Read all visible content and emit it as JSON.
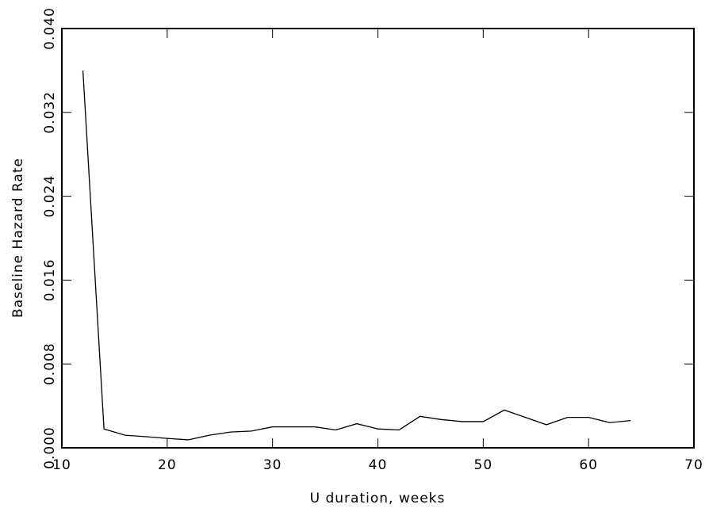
{
  "chart_data": {
    "type": "line",
    "xlabel": "U duration, weeks",
    "ylabel": "Baseline Hazard Rate",
    "x": [
      12,
      14,
      16,
      18,
      20,
      22,
      24,
      26,
      28,
      30,
      32,
      34,
      36,
      38,
      40,
      42,
      44,
      46,
      48,
      50,
      52,
      54,
      56,
      58,
      60,
      62,
      64
    ],
    "values": [
      0.036,
      0.0018,
      0.0012,
      0.00106,
      0.0009,
      0.00076,
      0.0012,
      0.0015,
      0.0016,
      0.002,
      0.002,
      0.002,
      0.0017,
      0.0023,
      0.0018,
      0.0017,
      0.003,
      0.0027,
      0.0025,
      0.0025,
      0.0036,
      0.0029,
      0.0022,
      0.0029,
      0.0029,
      0.0024,
      0.0026
    ],
    "color": "#000000",
    "xlim": [
      10,
      70
    ],
    "xticks": [
      10,
      20,
      30,
      40,
      50,
      60,
      70
    ],
    "ylim": [
      0,
      0.04
    ],
    "yticks": [
      {
        "value": 0,
        "label": "0.000"
      },
      {
        "value": 0.008,
        "label": "0.008"
      },
      {
        "value": 0.016,
        "label": "0.016"
      },
      {
        "value": 0.024,
        "label": "0.024"
      },
      {
        "value": 0.032,
        "label": "0.032"
      },
      {
        "value": 0.04,
        "label": "0.040"
      }
    ],
    "grid": false
  }
}
